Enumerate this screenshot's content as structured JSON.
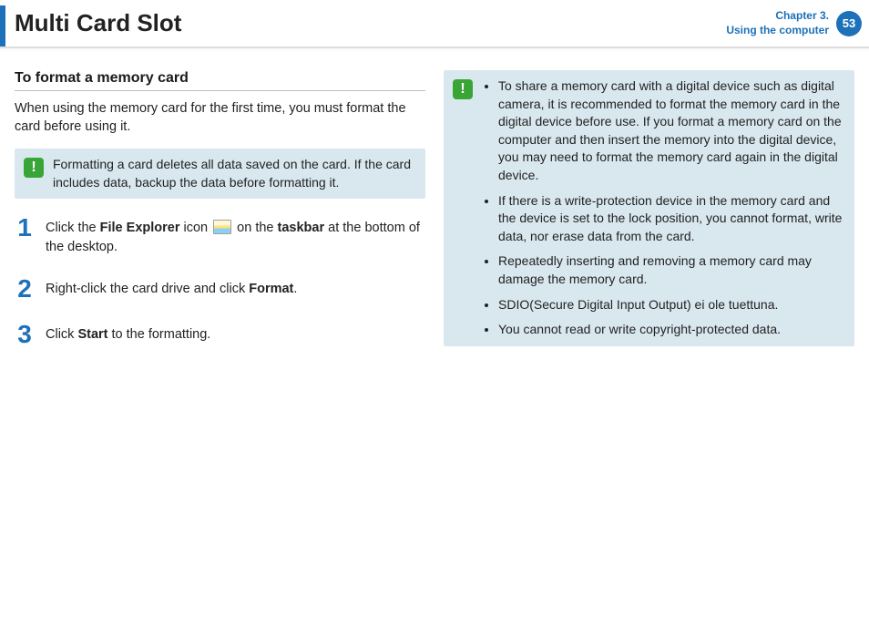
{
  "colors": {
    "accent": "#1d71b8",
    "callout_bg": "#d9e8ef",
    "alert_green": "#3aa537",
    "text": "#222222",
    "divider": "#bdbdbd"
  },
  "header": {
    "title": "Multi Card Slot",
    "chapter_line1": "Chapter 3.",
    "chapter_line2": "Using the computer",
    "page_number": "53"
  },
  "left": {
    "subheading": "To format a memory card",
    "intro": "When using the memory card for the first time, you must format the card before using it.",
    "warning": "Formatting a card deletes all data saved on the card. If the card includes data, backup the data before formatting it.",
    "steps": [
      {
        "n": "1",
        "pre": "Click the ",
        "b1": "File Explorer",
        "mid1": " icon ",
        "mid2": " on the ",
        "b2": "taskbar",
        "post": " at the bottom of the desktop."
      },
      {
        "n": "2",
        "pre": "Right-click the card drive and click ",
        "b1": "Format",
        "post": "."
      },
      {
        "n": "3",
        "pre": "Click ",
        "b1": "Start",
        "post": " to the formatting."
      }
    ]
  },
  "right": {
    "notes": [
      "To share a memory card with a digital device such as digital camera, it is recommended to format the memory card in the digital device before use. If you format a memory card on the computer and then insert the memory into the digital device, you may need to format the memory card again in the digital device.",
      "If there is a write-protection device in the memory card and the device is set to the lock position, you cannot format, write data, nor erase data from the card.",
      "Repeatedly inserting and removing a memory card may damage the memory card.",
      "SDIO(Secure Digital Input Output) ei ole tuettuna.",
      "You cannot read or write copyright-protected data."
    ]
  }
}
